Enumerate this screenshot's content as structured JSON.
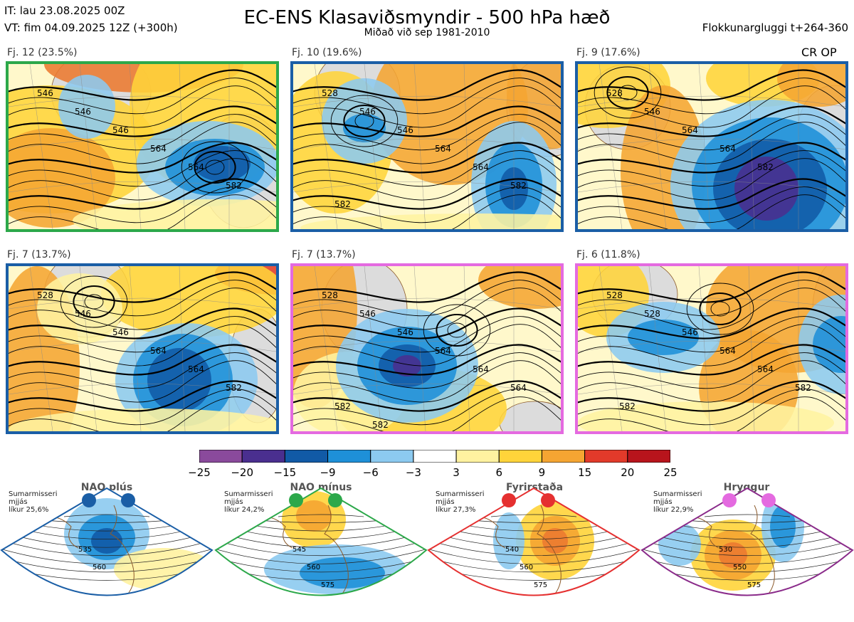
{
  "header": {
    "it_line": "IT: lau 23.08.2025 00Z",
    "vt_line": "VT: fim 04.09.2025 12Z  (+300h)",
    "title": "EC-ENS Klasaviðsmyndir - 500 hPa hæð",
    "subtitle": "Miðað við sep 1981-2010",
    "window": "Flokkunargluggi t+264-360",
    "crop": "CR OP"
  },
  "colors": {
    "nao_plus": "#1a5ea6",
    "nao_minus": "#2ca84a",
    "blocking": "#e53030",
    "ridge": "#e46ae0",
    "land": "#dcdcdc",
    "coast": "#8b5a2b"
  },
  "panels": [
    {
      "label": "Fj. 12 (23.5%)",
      "regime": "nao_minus",
      "contours": [
        "546",
        "546",
        "546",
        "564",
        "564",
        "582"
      ]
    },
    {
      "label": "Fj. 10 (19.6%)",
      "regime": "nao_plus",
      "contours": [
        "528",
        "546",
        "546",
        "564",
        "564",
        "582",
        "582"
      ]
    },
    {
      "label": "Fj. 9 (17.6%)",
      "regime": "nao_plus",
      "contours": [
        "528",
        "546",
        "564",
        "564",
        "582"
      ]
    },
    {
      "label": "Fj. 7 (13.7%)",
      "regime": "nao_plus",
      "contours": [
        "528",
        "546",
        "546",
        "564",
        "564",
        "582"
      ]
    },
    {
      "label": "Fj. 7 (13.7%)",
      "regime": "ridge",
      "contours": [
        "528",
        "546",
        "546",
        "564",
        "564",
        "564",
        "582",
        "582"
      ]
    },
    {
      "label": "Fj. 6 (11.8%)",
      "regime": "ridge",
      "contours": [
        "528",
        "528",
        "546",
        "564",
        "564",
        "582",
        "582"
      ]
    }
  ],
  "colorbar": {
    "ticks": [
      "−25",
      "−20",
      "−15",
      "−9",
      "−6",
      "−3",
      "3",
      "6",
      "9",
      "15",
      "20",
      "25"
    ],
    "colors": [
      "#8a4a9c",
      "#4a2f8f",
      "#115aa6",
      "#1e90d8",
      "#8ccaf0",
      "#ffffff",
      "#fff2a0",
      "#ffd43a",
      "#f5a532",
      "#ec7a30",
      "#e23a2a",
      "#b8141c"
    ]
  },
  "regimes": [
    {
      "name": "NAO plús",
      "info": "Sumarmisseri\nmjjás\nlíkur 25,6%",
      "contours": [
        "535",
        "560"
      ]
    },
    {
      "name": "NAO mínus",
      "info": "Sumarmisseri\nmjjás\nlíkur 24,2%",
      "contours": [
        "545",
        "560",
        "575"
      ]
    },
    {
      "name": "Fyrirstaða",
      "info": "Sumarmisseri\nmjjás\nlíkur 27,3%",
      "contours": [
        "540",
        "560",
        "575"
      ]
    },
    {
      "name": "Hryggur",
      "info": "Sumarmisseri\nmjjás\nlíkur 22,9%",
      "contours": [
        "530",
        "550",
        "575"
      ]
    }
  ]
}
